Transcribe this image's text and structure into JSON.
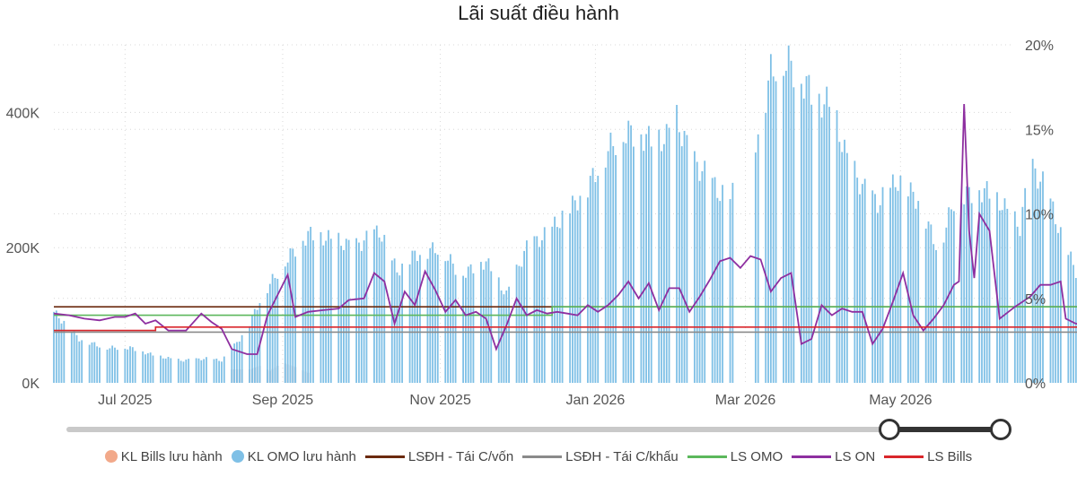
{
  "chart_data": {
    "type": "bar+line",
    "title": "Lãi suất điều hành",
    "x_ticks": [
      "Jul 2025",
      "Sep 2025",
      "Nov 2025",
      "Jan 2026",
      "Mar 2026",
      "May 2026"
    ],
    "y_left": {
      "ticks": [
        "0K",
        "200K",
        "400K"
      ],
      "range": [
        0,
        500000
      ]
    },
    "y_right": {
      "ticks": [
        "0%",
        "5%",
        "10%",
        "15%",
        "20%"
      ],
      "range": [
        0,
        20
      ]
    },
    "x_range_days": [
      0,
      377
    ],
    "bills_outstanding": {
      "name": "KL Bills lưu hành",
      "color": "#f2a98a",
      "axis": "left",
      "points": [
        [
          69,
          20000
        ],
        [
          77,
          20000
        ],
        [
          81,
          25000
        ],
        [
          85,
          18000
        ],
        [
          90,
          30000
        ],
        [
          96,
          22000
        ],
        [
          100,
          15000
        ]
      ]
    },
    "omo_outstanding": {
      "name": "KL OMO lưu hành",
      "color": "#7fc0e6",
      "axis": "left",
      "points": [
        [
          0,
          105000
        ],
        [
          10,
          65000
        ],
        [
          20,
          52000
        ],
        [
          30,
          52000
        ],
        [
          40,
          40000
        ],
        [
          50,
          33000
        ],
        [
          60,
          36000
        ],
        [
          66,
          33000
        ],
        [
          71,
          55000
        ],
        [
          76,
          80000
        ],
        [
          82,
          130000
        ],
        [
          92,
          185000
        ],
        [
          100,
          220000
        ],
        [
          106,
          215000
        ],
        [
          112,
          210000
        ],
        [
          118,
          200000
        ],
        [
          128,
          225000
        ],
        [
          135,
          165000
        ],
        [
          142,
          190000
        ],
        [
          152,
          200000
        ],
        [
          160,
          160000
        ],
        [
          170,
          180000
        ],
        [
          178,
          130000
        ],
        [
          186,
          200000
        ],
        [
          194,
          220000
        ],
        [
          204,
          262000
        ],
        [
          210,
          290000
        ],
        [
          218,
          345000
        ],
        [
          224,
          370000
        ],
        [
          230,
          370000
        ],
        [
          234,
          360000
        ],
        [
          241,
          362000
        ],
        [
          244,
          398000
        ],
        [
          248,
          360000
        ],
        [
          252,
          325000
        ],
        [
          256,
          310000
        ],
        [
          262,
          280000
        ],
        [
          266,
          275000
        ],
        [
          272,
          300000
        ],
        [
          278,
          390000
        ],
        [
          282,
          460000
        ],
        [
          286,
          480000
        ],
        [
          290,
          470000
        ],
        [
          300,
          420000
        ],
        [
          306,
          410000
        ],
        [
          312,
          330000
        ],
        [
          318,
          290000
        ],
        [
          324,
          265000
        ],
        [
          332,
          300000
        ],
        [
          340,
          270000
        ],
        [
          348,
          195000
        ],
        [
          354,
          270000
        ],
        [
          360,
          280000
        ],
        [
          366,
          285000
        ],
        [
          372,
          268000
        ],
        [
          380,
          230000
        ],
        [
          384,
          320000
        ],
        [
          390,
          290000
        ],
        [
          396,
          220000
        ],
        [
          402,
          165000
        ],
        [
          407,
          160000
        ]
      ]
    },
    "rates": [
      {
        "name": "LSĐH - Tái C/vốn",
        "color": "#6b2a0e",
        "points": [
          [
            0,
            4.5
          ],
          [
            407,
            4.5
          ]
        ]
      },
      {
        "name": "LSĐH - Tái C/khấu",
        "color": "#8a8a8a",
        "points": [
          [
            0,
            3.0
          ],
          [
            407,
            3.0
          ]
        ]
      },
      {
        "name": "LS OMO",
        "color": "#5cb85c",
        "points": [
          [
            0,
            4.0
          ],
          [
            196,
            4.0
          ],
          [
            196,
            4.5
          ],
          [
            407,
            4.5
          ]
        ]
      },
      {
        "name": "LS ON",
        "color": "#8e2fa0",
        "points": [
          [
            0,
            4.1
          ],
          [
            6,
            4.0
          ],
          [
            12,
            3.8
          ],
          [
            18,
            3.7
          ],
          [
            24,
            3.9
          ],
          [
            28,
            3.9
          ],
          [
            32,
            4.1
          ],
          [
            36,
            3.5
          ],
          [
            40,
            3.7
          ],
          [
            45,
            3.1
          ],
          [
            52,
            3.1
          ],
          [
            58,
            4.1
          ],
          [
            62,
            3.6
          ],
          [
            66,
            3.2
          ],
          [
            70,
            2.0
          ],
          [
            76,
            1.7
          ],
          [
            80,
            1.7
          ],
          [
            84,
            4.0
          ],
          [
            88,
            5.2
          ],
          [
            92,
            6.4
          ],
          [
            95,
            3.9
          ],
          [
            100,
            4.2
          ],
          [
            106,
            4.3
          ],
          [
            112,
            4.4
          ],
          [
            116,
            4.9
          ],
          [
            122,
            5.0
          ],
          [
            126,
            6.5
          ],
          [
            130,
            6.0
          ],
          [
            134,
            3.5
          ],
          [
            138,
            5.4
          ],
          [
            142,
            4.6
          ],
          [
            146,
            6.6
          ],
          [
            150,
            5.5
          ],
          [
            154,
            4.2
          ],
          [
            158,
            4.9
          ],
          [
            162,
            4.0
          ],
          [
            166,
            4.2
          ],
          [
            170,
            3.8
          ],
          [
            174,
            2.0
          ],
          [
            178,
            3.4
          ],
          [
            182,
            5.0
          ],
          [
            186,
            4.0
          ],
          [
            190,
            4.3
          ],
          [
            194,
            4.1
          ],
          [
            198,
            4.2
          ],
          [
            202,
            4.1
          ],
          [
            206,
            4.0
          ],
          [
            210,
            4.6
          ],
          [
            214,
            4.2
          ],
          [
            218,
            4.6
          ],
          [
            222,
            5.2
          ],
          [
            226,
            6.0
          ],
          [
            230,
            5.0
          ],
          [
            234,
            5.9
          ],
          [
            238,
            4.3
          ],
          [
            242,
            5.6
          ],
          [
            246,
            5.6
          ],
          [
            250,
            4.2
          ],
          [
            254,
            5.1
          ],
          [
            258,
            6.1
          ],
          [
            262,
            7.2
          ],
          [
            266,
            7.4
          ],
          [
            270,
            6.8
          ],
          [
            274,
            7.5
          ],
          [
            278,
            7.3
          ],
          [
            282,
            5.4
          ],
          [
            286,
            6.2
          ],
          [
            290,
            6.5
          ],
          [
            294,
            2.3
          ],
          [
            298,
            2.6
          ],
          [
            302,
            4.6
          ],
          [
            306,
            4.0
          ],
          [
            310,
            4.4
          ],
          [
            314,
            4.2
          ],
          [
            318,
            4.2
          ],
          [
            322,
            2.3
          ],
          [
            326,
            3.2
          ],
          [
            330,
            4.8
          ],
          [
            334,
            6.5
          ],
          [
            338,
            4.0
          ],
          [
            342,
            3.1
          ],
          [
            346,
            3.8
          ],
          [
            350,
            4.6
          ],
          [
            354,
            5.8
          ],
          [
            356,
            6.0
          ],
          [
            358,
            16.5
          ],
          [
            360,
            9.0
          ],
          [
            362,
            6.2
          ],
          [
            364,
            10.0
          ],
          [
            368,
            9.0
          ],
          [
            372,
            3.8
          ],
          [
            378,
            4.5
          ],
          [
            384,
            5.1
          ],
          [
            388,
            5.8
          ],
          [
            392,
            5.8
          ],
          [
            396,
            6.0
          ],
          [
            398,
            3.8
          ],
          [
            402,
            3.5
          ],
          [
            407,
            3.5
          ]
        ]
      },
      {
        "name": "LS Bills",
        "color": "#d9262b",
        "points": [
          [
            0,
            3.1
          ],
          [
            40,
            3.1
          ],
          [
            40,
            3.3
          ],
          [
            407,
            3.3
          ]
        ]
      }
    ],
    "legend_placement": "bottom",
    "grid": true
  },
  "legend": [
    {
      "label": "KL Bills lưu hành",
      "kind": "dot",
      "color": "#f2a98a"
    },
    {
      "label": "KL OMO lưu hành",
      "kind": "dot",
      "color": "#7fc0e6"
    },
    {
      "label": "LSĐH - Tái C/vốn",
      "kind": "line",
      "color": "#6b2a0e"
    },
    {
      "label": "LSĐH - Tái C/khấu",
      "kind": "line",
      "color": "#8a8a8a"
    },
    {
      "label": "LS OMO",
      "kind": "line",
      "color": "#5cb85c"
    },
    {
      "label": "LS ON",
      "kind": "line",
      "color": "#8e2fa0"
    },
    {
      "label": "LS Bills",
      "kind": "line",
      "color": "#d9262b"
    }
  ]
}
